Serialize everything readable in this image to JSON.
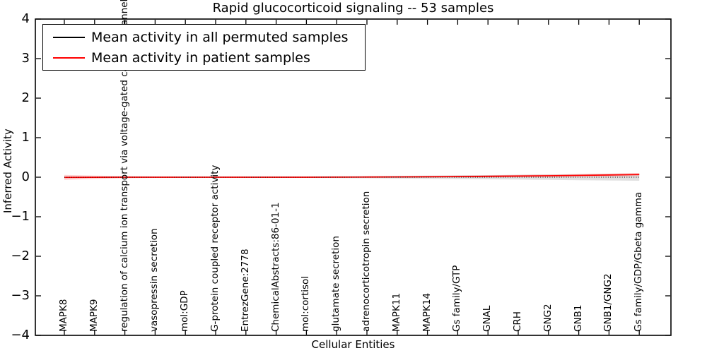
{
  "title": "Rapid glucocorticoid signaling -- 53 samples",
  "axes": {
    "xlabel": "Cellular Entities",
    "ylabel": "Inferred Activity",
    "y_ticks": [
      "4",
      "3",
      "2",
      "1",
      "0",
      "−1",
      "−2",
      "−3",
      "−4"
    ],
    "ylim": [
      -4,
      4
    ]
  },
  "legend": {
    "entries": [
      {
        "label": "Mean activity in all permuted samples",
        "color": "#000000"
      },
      {
        "label": "Mean activity in patient samples",
        "color": "#ff0000"
      }
    ],
    "position": "upper left"
  },
  "chart_data": {
    "type": "line",
    "title": "Rapid glucocorticoid signaling -- 53 samples",
    "xlabel": "Cellular Entities",
    "ylabel": "Inferred Activity",
    "ylim": [
      -4,
      4
    ],
    "grid": false,
    "legend_position": "upper left",
    "categories": [
      "MAPK8",
      "MAPK9",
      "regulation of calcium ion transport via voltage-gated calcium channel",
      "vasopressin secretion",
      "mol:GDP",
      "G-protein coupled receptor activity",
      "EntrezGene:2778",
      "ChemicalAbstracts:86-01-1",
      "mol:cortisol",
      "glutamate secretion",
      "adrenocorticotropin secretion",
      "MAPK11",
      "MAPK14",
      "Gs family/GTP",
      "GNAL",
      "CRH",
      "GNG2",
      "GNB1",
      "GNB1/GNG2",
      "Gs family/GDP/Gbeta gamma"
    ],
    "series": [
      {
        "name": "Mean activity in all permuted samples",
        "color": "#000000",
        "style": "dotted",
        "band_color": "rgba(0,0,0,0.12)",
        "values": [
          0,
          0,
          0,
          0,
          0,
          0,
          0,
          0,
          0,
          0,
          0,
          0,
          0,
          0,
          0,
          0,
          0,
          0,
          0,
          0
        ],
        "band": [
          0.008,
          0.008,
          0.008,
          0.008,
          0.009,
          0.01,
          0.012,
          0.015,
          0.018,
          0.022,
          0.027,
          0.033,
          0.04,
          0.047,
          0.054,
          0.061,
          0.068,
          0.075,
          0.082,
          0.09
        ]
      },
      {
        "name": "Mean activity in patient samples",
        "color": "#ff0000",
        "style": "solid",
        "band_color": "rgba(255,0,0,0.18)",
        "values": [
          -0.005,
          -0.002,
          0,
          0,
          0,
          0,
          0,
          0,
          0,
          0.002,
          0.004,
          0.007,
          0.011,
          0.016,
          0.022,
          0.029,
          0.037,
          0.046,
          0.056,
          0.068
        ],
        "band": [
          0.062,
          0.042,
          0.026,
          0.018,
          0.015,
          0.015,
          0.015,
          0.015,
          0.015,
          0.016,
          0.018,
          0.02,
          0.022,
          0.025,
          0.027,
          0.029,
          0.031,
          0.033,
          0.036,
          0.04
        ]
      }
    ]
  }
}
